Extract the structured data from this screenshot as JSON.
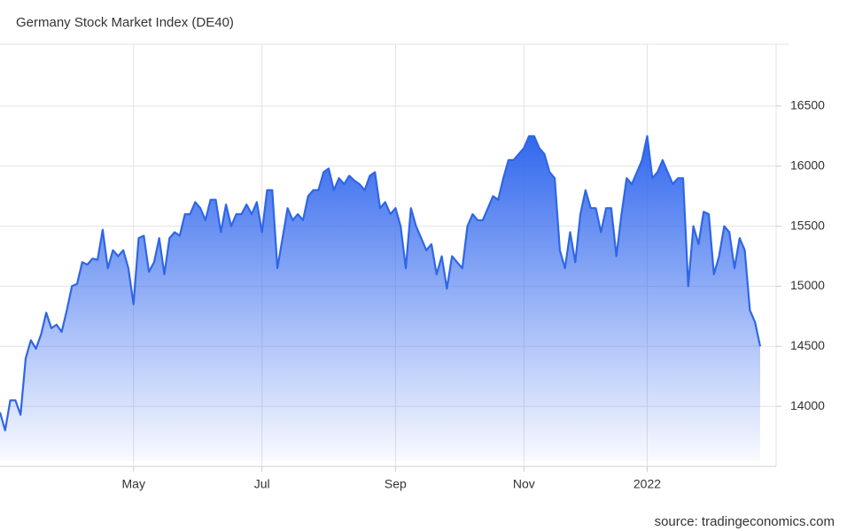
{
  "chart_data": {
    "type": "area",
    "title": "Germany Stock Market Index (DE40)",
    "source": "source: tradingeconomics.com",
    "color": "#2f66e6",
    "grid": true,
    "categories": [
      null,
      null,
      null,
      null,
      null,
      null,
      null,
      null,
      null,
      null,
      null,
      null,
      null,
      null,
      null,
      null,
      null,
      null,
      null,
      null,
      null,
      null,
      null,
      null,
      null,
      null,
      "May",
      null,
      null,
      null,
      null,
      null,
      null,
      null,
      null,
      null,
      null,
      null,
      null,
      null,
      null,
      null,
      null,
      null,
      null,
      null,
      null,
      null,
      null,
      null,
      null,
      "Jul",
      null,
      null,
      null,
      null,
      null,
      null,
      null,
      null,
      null,
      null,
      null,
      null,
      null,
      null,
      null,
      null,
      null,
      null,
      null,
      null,
      null,
      null,
      null,
      null,
      null,
      "Sep",
      null,
      null,
      null,
      null,
      null,
      null,
      null,
      null,
      null,
      null,
      null,
      null,
      null,
      null,
      null,
      null,
      null,
      null,
      null,
      null,
      null,
      null,
      null,
      null,
      "Nov",
      null,
      null,
      null,
      null,
      null,
      null,
      null,
      null,
      null,
      null,
      null,
      null,
      null,
      null,
      null,
      null,
      null,
      null,
      null,
      null,
      null,
      null,
      null,
      "2022",
      null,
      null,
      null,
      null,
      null,
      null,
      null,
      null,
      null,
      null,
      null,
      null,
      null,
      null,
      null,
      null,
      null,
      null,
      null,
      null,
      null,
      null
    ],
    "values": [
      13950,
      13800,
      14050,
      14050,
      13930,
      14400,
      14550,
      14480,
      14600,
      14780,
      14650,
      14680,
      14620,
      14800,
      15000,
      15020,
      15200,
      15180,
      15230,
      15220,
      15470,
      15150,
      15300,
      15250,
      15300,
      15150,
      14850,
      15400,
      15420,
      15120,
      15200,
      15400,
      15100,
      15400,
      15450,
      15420,
      15600,
      15600,
      15700,
      15650,
      15550,
      15720,
      15720,
      15450,
      15680,
      15500,
      15600,
      15600,
      15680,
      15600,
      15700,
      15450,
      15800,
      15800,
      15150,
      15400,
      15650,
      15550,
      15600,
      15550,
      15750,
      15800,
      15800,
      15950,
      15980,
      15800,
      15900,
      15850,
      15920,
      15880,
      15850,
      15800,
      15920,
      15950,
      15650,
      15700,
      15600,
      15650,
      15500,
      15150,
      15650,
      15500,
      15400,
      15300,
      15350,
      15100,
      15250,
      14980,
      15250,
      15200,
      15150,
      15500,
      15600,
      15550,
      15550,
      15650,
      15750,
      15720,
      15900,
      16050,
      16050,
      16100,
      16150,
      16250,
      16250,
      16150,
      16100,
      15950,
      15900,
      15300,
      15150,
      15450,
      15200,
      15600,
      15800,
      15650,
      15650,
      15450,
      15650,
      15650,
      15250,
      15600,
      15900,
      15850,
      15950,
      16050,
      16250,
      15900,
      15950,
      16050,
      15950,
      15850,
      15900,
      15900,
      15000,
      15500,
      15350,
      15620,
      15600,
      15100,
      15250,
      15500,
      15450,
      15150,
      15400,
      15300,
      14800,
      14700,
      14500
    ],
    "ylim": [
      13500,
      17000
    ],
    "yticks": [
      14000,
      14500,
      15000,
      15500,
      16000,
      16500
    ]
  }
}
